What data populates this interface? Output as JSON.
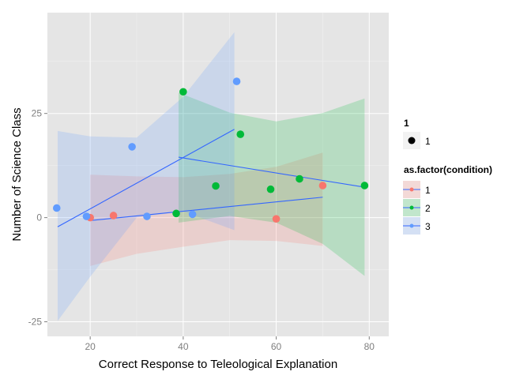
{
  "chart_data": {
    "type": "scatter",
    "xlabel": "Correct Response to Teleological Explanation",
    "ylabel": "Number of Science Class",
    "xlim": [
      10.8,
      84.2
    ],
    "ylim": [
      -28.5,
      49.2
    ],
    "x_ticks": [
      20,
      40,
      60,
      80
    ],
    "y_ticks": [
      -25,
      0,
      25
    ],
    "grid": true,
    "background": "#e5e5e5",
    "legend_position": "right",
    "legend_size": {
      "title": "1",
      "label": "1"
    },
    "legend_color": {
      "title": "as.factor(condition)"
    },
    "series": [
      {
        "name": "1",
        "color": "#f8766d",
        "points": [
          [
            20,
            0
          ],
          [
            25,
            0.5
          ],
          [
            60,
            -0.3
          ],
          [
            70,
            7.7
          ]
        ],
        "fit": [
          [
            20,
            -0.7
          ],
          [
            70,
            4.9
          ]
        ],
        "band_upper": [
          [
            20,
            10.3
          ],
          [
            30,
            9.9
          ],
          [
            40,
            9.7
          ],
          [
            50,
            10.5
          ],
          [
            60,
            12.2
          ],
          [
            70,
            15.6
          ]
        ],
        "band_lower": [
          [
            20,
            -11.6
          ],
          [
            30,
            -8.7
          ],
          [
            40,
            -7
          ],
          [
            50,
            -5.4
          ],
          [
            60,
            -5.6
          ],
          [
            70,
            -6.8
          ]
        ]
      },
      {
        "name": "2",
        "color": "#00ba38",
        "points": [
          [
            38.5,
            1
          ],
          [
            40,
            30.2
          ],
          [
            47,
            7.6
          ],
          [
            52.3,
            20
          ],
          [
            58.8,
            6.8
          ],
          [
            65,
            9.3
          ],
          [
            79,
            7.7
          ]
        ],
        "fit": [
          [
            39,
            14.5
          ],
          [
            79,
            7.3
          ]
        ],
        "band_upper": [
          [
            39,
            30
          ],
          [
            50,
            25.2
          ],
          [
            60,
            23.1
          ],
          [
            70,
            25.1
          ],
          [
            79,
            28.6
          ]
        ],
        "band_lower": [
          [
            39,
            -1.2
          ],
          [
            50,
            0.4
          ],
          [
            60,
            -1.2
          ],
          [
            70,
            -6.3
          ],
          [
            79,
            -14
          ]
        ]
      },
      {
        "name": "3",
        "color": "#619cff",
        "points": [
          [
            12.8,
            2.3
          ],
          [
            19.2,
            0.3
          ],
          [
            29,
            17
          ],
          [
            32.2,
            0.3
          ],
          [
            42,
            0.8
          ],
          [
            51.5,
            32.7
          ]
        ],
        "fit": [
          [
            13,
            -2.2
          ],
          [
            51,
            21.2
          ]
        ],
        "band_upper": [
          [
            13,
            20.8
          ],
          [
            20,
            19.5
          ],
          [
            30,
            19.2
          ],
          [
            40,
            29
          ],
          [
            51,
            44.5
          ]
        ],
        "band_lower": [
          [
            13,
            -24.8
          ],
          [
            20,
            -14.2
          ],
          [
            30,
            0
          ],
          [
            40,
            1.5
          ],
          [
            51,
            -3
          ]
        ]
      }
    ]
  }
}
